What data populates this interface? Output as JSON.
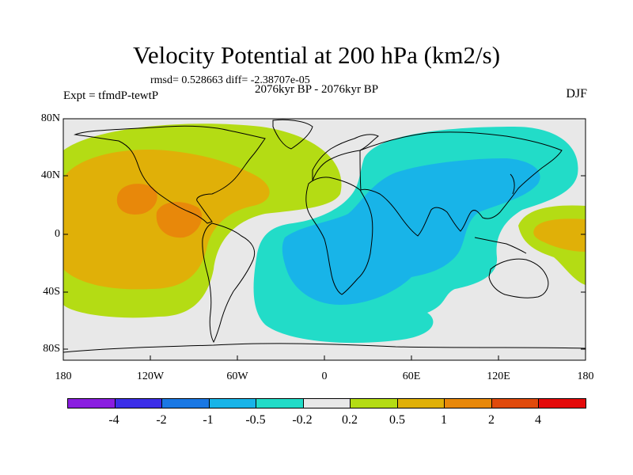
{
  "title": "Velocity Potential at 200 hPa (km2/s)",
  "stats": "rmsd= 0.528663 diff= -2.38707e-05",
  "period": "2076kyr BP - 2076kyr BP",
  "experiment": "Expt = tfmdP-tewtP",
  "season": "DJF",
  "lat_ticks": [
    "80N",
    "40N",
    "0",
    "40S",
    "80S"
  ],
  "lon_ticks": [
    "180",
    "120W",
    "60W",
    "0",
    "60E",
    "120E",
    "180"
  ],
  "legend_labels": [
    "-4",
    "-2",
    "-1",
    "-0.5",
    "-0.2",
    "0.2",
    "0.5",
    "1",
    "2",
    "4"
  ],
  "legend_colors": [
    "#8a1de0",
    "#3c2ee8",
    "#1a78e4",
    "#18b4e8",
    "#22dcc8",
    "#e8e8e8",
    "#b4dc14",
    "#e0b008",
    "#e8880a",
    "#e04a0c",
    "#e40a0a"
  ],
  "colors": {
    "neutral": "#e8e8e8",
    "pos_02": "#b4dc14",
    "pos_05": "#e0b008",
    "pos_1": "#e8880a",
    "neg_02": "#22dcc8",
    "neg_05": "#18b4e8"
  }
}
